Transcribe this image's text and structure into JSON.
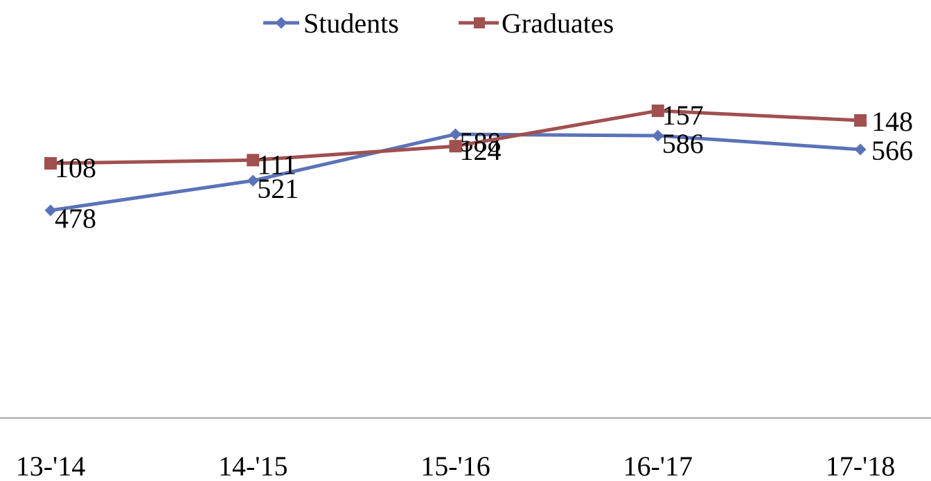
{
  "chart_data": {
    "type": "line",
    "categories": [
      "13-'14",
      "14-'15",
      "15-'16",
      "16-'17",
      "17-'18"
    ],
    "series": [
      {
        "name": "Students",
        "values": [
          478,
          521,
          588,
          586,
          566
        ],
        "color": "#5B72B8",
        "marker": "diamond"
      },
      {
        "name": "Graduates",
        "values": [
          108,
          111,
          124,
          157,
          148
        ],
        "color": "#A0504F",
        "marker": "square"
      }
    ],
    "data_labels": true,
    "legend_position": "top",
    "grid": false,
    "show_y_axis": false
  }
}
